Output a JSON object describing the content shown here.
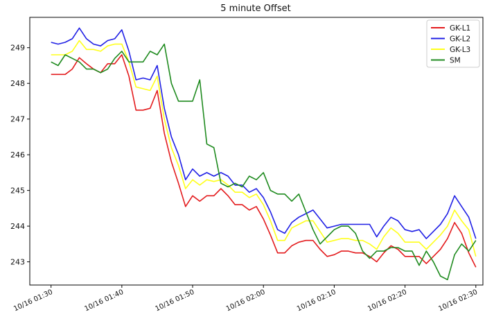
{
  "chart_data": {
    "type": "line",
    "title": "5 minute Offset",
    "xlabel": "",
    "ylabel": "",
    "x_tick_labels": [
      "10/16 01:30",
      "10/16 01:40",
      "10/16 01:50",
      "10/16 02:00",
      "10/16 02:10",
      "10/16 02:20",
      "10/16 02:30"
    ],
    "x_tick_minutes": [
      0,
      10,
      20,
      30,
      40,
      50,
      60
    ],
    "xlim_minutes": [
      -3,
      61
    ],
    "yticks": [
      243,
      244,
      245,
      246,
      247,
      248,
      249
    ],
    "ylim": [
      242.35,
      249.85
    ],
    "grid": false,
    "legend": "top-right",
    "series": [
      {
        "name": "GK-L1",
        "color": "#e31a1c",
        "x": [
          0,
          1,
          2,
          3,
          4,
          5,
          6,
          7,
          8,
          9,
          10,
          11,
          12,
          13,
          14,
          15,
          16,
          17,
          18,
          19,
          20,
          21,
          22,
          23,
          24,
          25,
          26,
          27,
          28,
          29,
          30,
          31,
          32,
          33,
          34,
          35,
          36,
          37,
          38,
          39,
          40,
          41,
          42,
          43,
          44,
          45,
          46,
          47,
          48,
          49,
          50,
          51,
          52,
          53,
          54,
          55,
          56,
          57,
          58,
          59,
          60
        ],
        "y": [
          248.25,
          248.25,
          248.25,
          248.4,
          248.72,
          248.55,
          248.4,
          248.3,
          248.55,
          248.55,
          248.8,
          248.2,
          247.25,
          247.25,
          247.3,
          247.8,
          246.6,
          245.8,
          245.2,
          244.55,
          244.85,
          244.7,
          244.85,
          244.85,
          245.05,
          244.85,
          244.6,
          244.6,
          244.45,
          244.55,
          244.2,
          243.75,
          243.25,
          243.25,
          243.45,
          243.55,
          243.6,
          243.6,
          243.35,
          243.15,
          243.2,
          243.3,
          243.3,
          243.25,
          243.25,
          243.15,
          243.0,
          243.25,
          243.45,
          243.35,
          243.15,
          243.15,
          243.15,
          242.95,
          243.15,
          243.35,
          243.65,
          244.1,
          243.8,
          243.25,
          242.85
        ]
      },
      {
        "name": "GK-L2",
        "color": "#1f1fe5",
        "x": [
          0,
          1,
          2,
          3,
          4,
          5,
          6,
          7,
          8,
          9,
          10,
          11,
          12,
          13,
          14,
          15,
          16,
          17,
          18,
          19,
          20,
          21,
          22,
          23,
          24,
          25,
          26,
          27,
          28,
          29,
          30,
          31,
          32,
          33,
          34,
          35,
          36,
          37,
          38,
          39,
          40,
          41,
          42,
          43,
          44,
          45,
          46,
          47,
          48,
          49,
          50,
          51,
          52,
          53,
          54,
          55,
          56,
          57,
          58,
          59,
          60
        ],
        "y": [
          249.15,
          249.1,
          249.15,
          249.25,
          249.55,
          249.25,
          249.1,
          249.05,
          249.2,
          249.25,
          249.5,
          248.9,
          248.1,
          248.15,
          248.1,
          248.5,
          247.3,
          246.5,
          246.0,
          245.3,
          245.6,
          245.4,
          245.5,
          245.4,
          245.5,
          245.4,
          245.15,
          245.15,
          244.95,
          245.05,
          244.8,
          244.4,
          243.9,
          243.8,
          244.1,
          244.25,
          244.35,
          244.45,
          244.2,
          243.95,
          244.0,
          244.05,
          244.05,
          244.05,
          244.05,
          244.05,
          243.7,
          244.0,
          244.25,
          244.15,
          243.9,
          243.85,
          243.9,
          243.65,
          243.85,
          244.05,
          244.35,
          244.85,
          244.55,
          244.25,
          243.65
        ]
      },
      {
        "name": "GK-L3",
        "color": "#ffff1a",
        "x": [
          0,
          1,
          2,
          3,
          4,
          5,
          6,
          7,
          8,
          9,
          10,
          11,
          12,
          13,
          14,
          15,
          16,
          17,
          18,
          19,
          20,
          21,
          22,
          23,
          24,
          25,
          26,
          27,
          28,
          29,
          30,
          31,
          32,
          33,
          34,
          35,
          36,
          37,
          38,
          39,
          40,
          41,
          42,
          43,
          44,
          45,
          46,
          47,
          48,
          49,
          50,
          51,
          52,
          53,
          54,
          55,
          56,
          57,
          58,
          59,
          60
        ],
        "y": [
          248.8,
          248.8,
          248.8,
          248.9,
          249.2,
          248.95,
          248.95,
          248.9,
          249.05,
          249.1,
          249.1,
          248.6,
          247.9,
          247.85,
          247.8,
          248.2,
          247.0,
          246.2,
          245.7,
          245.05,
          245.3,
          245.15,
          245.3,
          245.25,
          245.3,
          245.15,
          244.95,
          244.95,
          244.8,
          244.9,
          244.6,
          244.15,
          243.6,
          243.6,
          243.95,
          244.05,
          244.15,
          244.15,
          243.85,
          243.55,
          243.6,
          243.65,
          243.65,
          243.6,
          243.6,
          243.5,
          243.35,
          243.7,
          243.95,
          243.8,
          243.55,
          243.55,
          243.55,
          243.35,
          243.55,
          243.75,
          244.0,
          244.45,
          244.15,
          243.9,
          243.15
        ]
      },
      {
        "name": "SM",
        "color": "#1e8a1e",
        "x": [
          0,
          1,
          2,
          3,
          4,
          5,
          6,
          7,
          8,
          9,
          10,
          11,
          12,
          13,
          14,
          15,
          16,
          17,
          18,
          19,
          20,
          21,
          22,
          23,
          24,
          25,
          26,
          27,
          28,
          29,
          30,
          31,
          32,
          33,
          34,
          35,
          36,
          37,
          38,
          39,
          40,
          41,
          42,
          43,
          44,
          45,
          46,
          47,
          48,
          49,
          50,
          51,
          52,
          53,
          54,
          55,
          56,
          57,
          58,
          59,
          60
        ],
        "y": [
          248.6,
          248.5,
          248.8,
          248.7,
          248.6,
          248.4,
          248.4,
          248.3,
          248.4,
          248.7,
          248.9,
          248.6,
          248.6,
          248.6,
          248.9,
          248.8,
          249.1,
          248.0,
          247.5,
          247.5,
          247.5,
          248.1,
          246.3,
          246.2,
          245.2,
          245.1,
          245.2,
          245.1,
          245.4,
          245.3,
          245.5,
          245.0,
          244.9,
          244.9,
          244.7,
          244.9,
          244.4,
          243.9,
          243.5,
          243.7,
          243.9,
          244.0,
          244.0,
          243.8,
          243.3,
          243.1,
          243.3,
          243.3,
          243.4,
          243.4,
          243.3,
          243.3,
          242.9,
          243.3,
          243.0,
          242.6,
          242.5,
          243.2,
          243.5,
          243.3,
          243.6
        ]
      }
    ]
  }
}
